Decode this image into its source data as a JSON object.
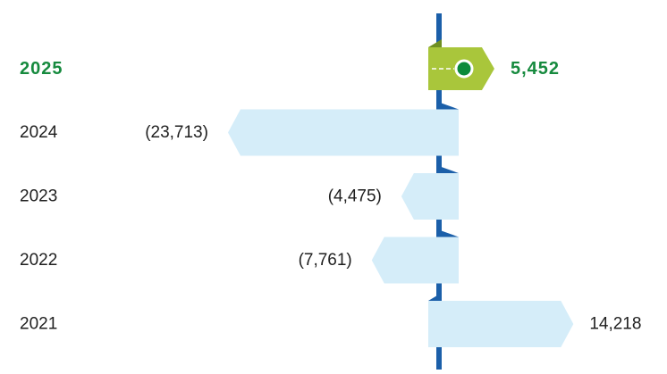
{
  "chart_data": {
    "type": "bar",
    "orientation": "horizontal",
    "categories": [
      "2025",
      "2024",
      "2023",
      "2022",
      "2021"
    ],
    "values": [
      5452,
      -23713,
      -4475,
      -7761,
      14218
    ],
    "value_labels": [
      "5,452",
      "(23,713)",
      "(4,475)",
      "(7,761)",
      "14,218"
    ],
    "colors": [
      "#a9c63b",
      "#d5edf9",
      "#d5edf9",
      "#d5edf9",
      "#d5edf9"
    ],
    "highlight": "2025"
  }
}
